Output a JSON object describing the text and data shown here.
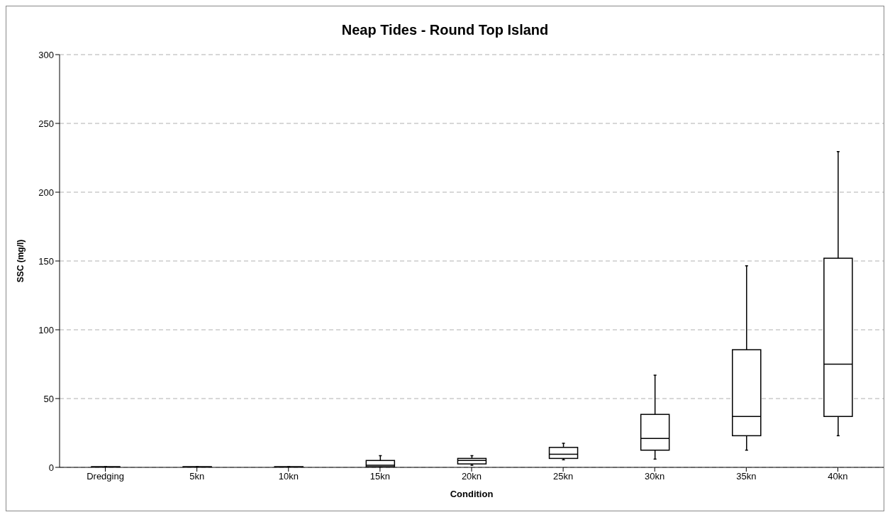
{
  "chart_data": {
    "type": "box",
    "title": "Neap Tides - Round Top Island",
    "xlabel": "Condition",
    "ylabel": "SSC (mg/l)",
    "categories": [
      "Dredging",
      "5kn",
      "10kn",
      "15kn",
      "20kn",
      "25kn",
      "30kn",
      "35kn",
      "40kn"
    ],
    "boxes": [
      {
        "low": 0,
        "q1": 0,
        "median": 0,
        "q3": 0.5,
        "high": 0.5
      },
      {
        "low": 0,
        "q1": 0,
        "median": 0,
        "q3": 0.5,
        "high": 0.5
      },
      {
        "low": 0,
        "q1": 0,
        "median": 0,
        "q3": 0.5,
        "high": 0.5
      },
      {
        "low": 0,
        "q1": 0.5,
        "median": 1.5,
        "q3": 5,
        "high": 8.5
      },
      {
        "low": 1.5,
        "q1": 2.5,
        "median": 5,
        "q3": 6.5,
        "high": 8.5
      },
      {
        "low": 5.5,
        "q1": 6.5,
        "median": 9.5,
        "q3": 14.5,
        "high": 17.5
      },
      {
        "low": 6,
        "q1": 12.5,
        "median": 21,
        "q3": 38.5,
        "high": 67
      },
      {
        "low": 12.5,
        "q1": 23,
        "median": 37,
        "q3": 85.5,
        "high": 146.5
      },
      {
        "low": 23,
        "q1": 37,
        "median": 75,
        "q3": 152,
        "high": 229.5
      }
    ],
    "color": "#000000",
    "ylim": [
      0,
      300
    ],
    "yticks": [
      0,
      50,
      100,
      150,
      200,
      250,
      300
    ],
    "grid": "y"
  }
}
